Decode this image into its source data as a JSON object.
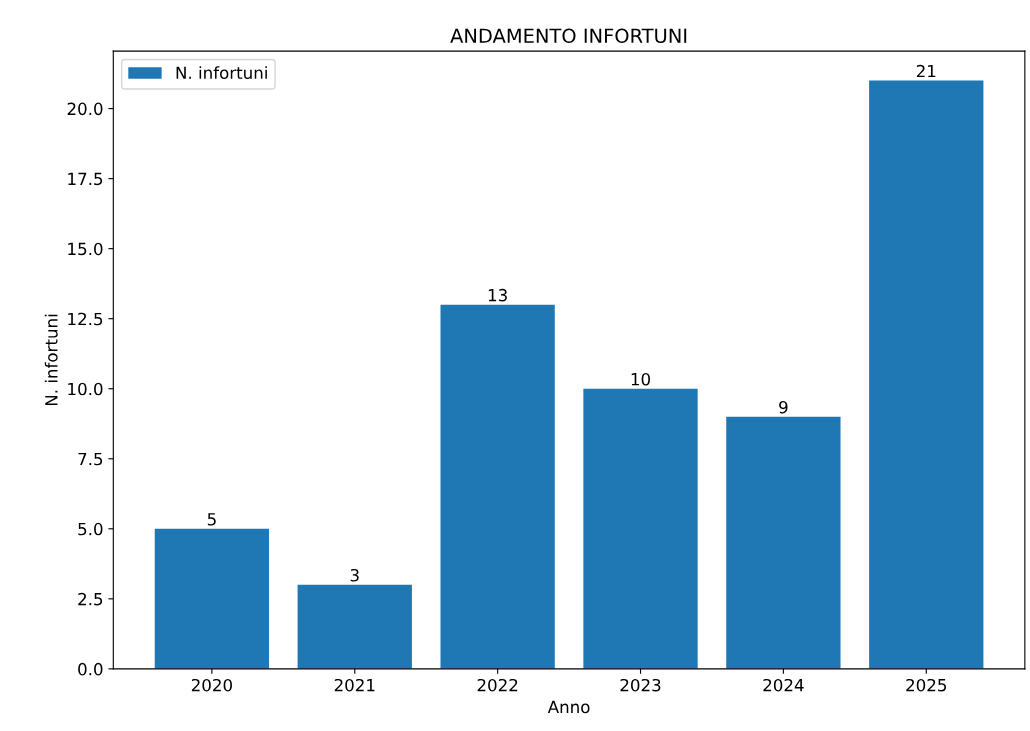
{
  "chart_data": {
    "type": "bar",
    "title": "ANDAMENTO INFORTUNI",
    "xlabel": "Anno",
    "ylabel": "N. infortuni",
    "categories": [
      "2020",
      "2021",
      "2022",
      "2023",
      "2024",
      "2025"
    ],
    "series": [
      {
        "name": "N. infortuni",
        "color": "#1f77b4",
        "values": [
          5,
          3,
          13,
          10,
          9,
          21
        ]
      }
    ],
    "ylim": [
      0,
      22.05
    ],
    "yticks": [
      {
        "value": 0,
        "label": "0.0"
      },
      {
        "value": 2.5,
        "label": "2.5"
      },
      {
        "value": 5,
        "label": "5.0"
      },
      {
        "value": 7.5,
        "label": "7.5"
      },
      {
        "value": 10,
        "label": "10.0"
      },
      {
        "value": 12.5,
        "label": "12.5"
      },
      {
        "value": 15,
        "label": "15.0"
      },
      {
        "value": 17.5,
        "label": "17.5"
      },
      {
        "value": 20,
        "label": "20.0"
      }
    ],
    "data_labels": true,
    "legend": "top left",
    "grid": false
  }
}
